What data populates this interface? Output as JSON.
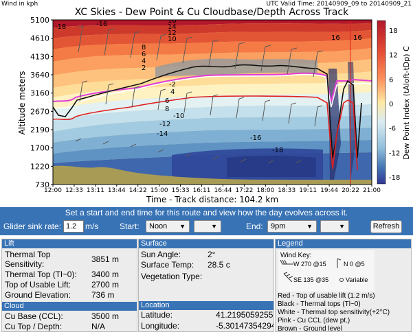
{
  "plot": {
    "title": "XC Skies - Dew Point & Cu Cloudbase/Depth Across Track",
    "wind_units": "Wind in kph",
    "valid_time": "UTC Valid Time: 20140909_09 to 20140909_21",
    "ylabel": "Altitude meters",
    "xlabel": "Time - Track distance: 104.2 km",
    "y_ticks": [
      "5100",
      "4610",
      "4130",
      "3640",
      "3160",
      "2670",
      "2190",
      "1700",
      "1220",
      "730"
    ],
    "x_ticks": [
      "12:00",
      "12:33",
      "13:11",
      "13:44",
      "14:22",
      "15:00",
      "15:33",
      "16:11",
      "16:44",
      "17:22",
      "18:00",
      "18:33",
      "19:11",
      "19:44",
      "20:22",
      "21:00"
    ],
    "colorbar_label": "Dew Point Index (tAloft-tDp) C",
    "colorbar_ticks": [
      "18",
      "12",
      "6",
      "0",
      "-6",
      "-12",
      "-18"
    ],
    "contour_labels": [
      "-18",
      "-16",
      "16",
      "14",
      "12",
      "10",
      "8",
      "6",
      "4",
      "2",
      "-2",
      "4",
      "6",
      "8",
      "-10",
      "-12",
      "-14",
      "-16",
      "-18",
      "16",
      "16"
    ],
    "colors": {
      "thermal_tops": "#111111",
      "usable_lift": "#e02020",
      "cu_ccl": "#e03fd7",
      "ground": "#b0a060",
      "cloud": "#9a9a9a"
    }
  },
  "banner": "Set a start and end time for this route and view how the day evolves across it.",
  "controls": {
    "sink_label": "Glider sink rate:",
    "sink_value": "1.2",
    "sink_units": "m/s",
    "start_label": "Start:",
    "start_value": "Noon",
    "start_minutes": "",
    "end_label": "End:",
    "end_value": "9pm",
    "end_minutes": "",
    "refresh_label": "Refresh"
  },
  "lift": {
    "heading": "Lift",
    "rows": [
      {
        "label": "Thermal Top",
        "value": ""
      },
      {
        "label": "Sensitivity:",
        "value": "3851 m"
      },
      {
        "label": "Thermal Top (Tl~0):",
        "value": "3400 m"
      },
      {
        "label": "Top of Usable Lift:",
        "value": "2700 m"
      },
      {
        "label": "Ground Elevation:",
        "value": "736 m"
      }
    ]
  },
  "cloud": {
    "heading": "Cloud",
    "rows": [
      {
        "label": "Cu Base (CCL):",
        "value": "3500 m"
      },
      {
        "label": "Cu Top / Depth:",
        "value": "N/A"
      }
    ]
  },
  "surface": {
    "heading": "Surface",
    "rows": [
      {
        "label": "Sun Angle:",
        "value": "2°"
      },
      {
        "label": "Surface Temp:",
        "value": "28.5 c"
      },
      {
        "label": "Vegetation Type:",
        "value": ""
      }
    ]
  },
  "location": {
    "heading": "Location",
    "rows": [
      {
        "label": "Latitude:",
        "value": "41.2195059255"
      },
      {
        "label": "Longitude:",
        "value": "-5.30147354294"
      }
    ]
  },
  "legend": {
    "heading": "Legend",
    "wind_key": "Wind Key:",
    "wind_items": [
      "W 270 @15",
      "N 0 @5",
      "SE 135 @35",
      "Variable"
    ],
    "lines": [
      "Red - Top of usable lift (1.2 m/s)",
      "Black - Thermal tops (Tl~0)",
      "White - Thermal top sensitivity(+2°C)",
      "Pink - Cu CCL (dew pt.)",
      "Brown - Ground level"
    ]
  }
}
